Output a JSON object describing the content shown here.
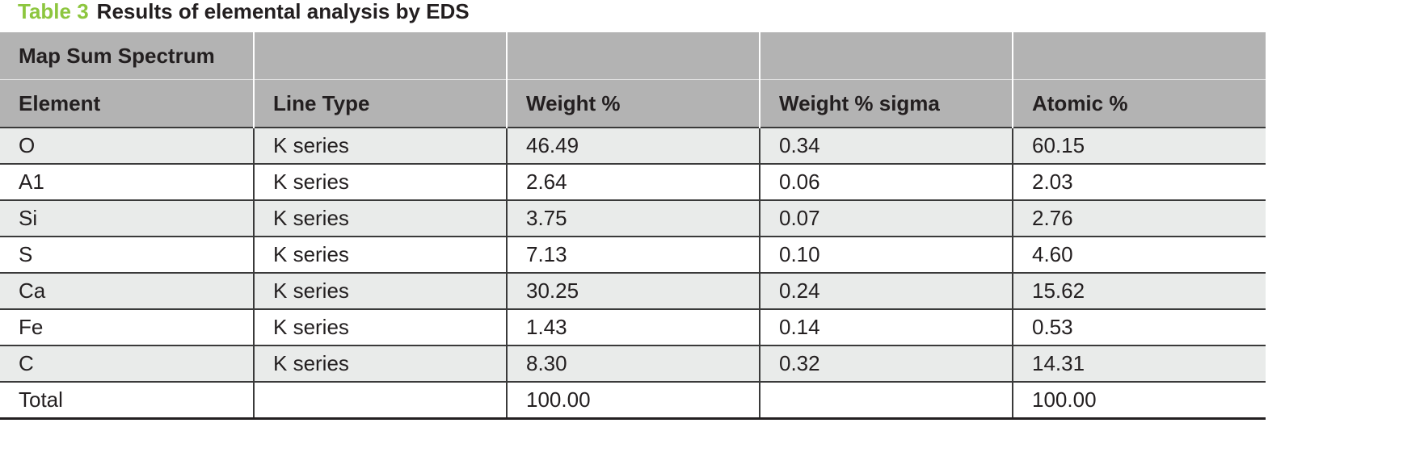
{
  "caption_label": "Table 3",
  "caption": "Results of elemental analysis by EDS",
  "table": {
    "group_header": "Map Sum Spectrum",
    "columns": [
      "Element",
      "Line Type",
      "Weight %",
      "Weight % sigma",
      "Atomic %"
    ],
    "rows": [
      [
        "O",
        "K series",
        "46.49",
        "0.34",
        "60.15"
      ],
      [
        "A1",
        "K series",
        "2.64",
        "0.06",
        "2.03"
      ],
      [
        "Si",
        "K series",
        "3.75",
        "0.07",
        "2.76"
      ],
      [
        "S",
        "K series",
        "7.13",
        "0.10",
        "4.60"
      ],
      [
        "Ca",
        "K series",
        "30.25",
        "0.24",
        "15.62"
      ],
      [
        "Fe",
        "K series",
        "1.43",
        "0.14",
        "0.53"
      ],
      [
        "C",
        "K series",
        "8.30",
        "0.32",
        "14.31"
      ]
    ],
    "total": {
      "label": "Total",
      "weight": "100.00",
      "atomic": "100.00"
    }
  }
}
